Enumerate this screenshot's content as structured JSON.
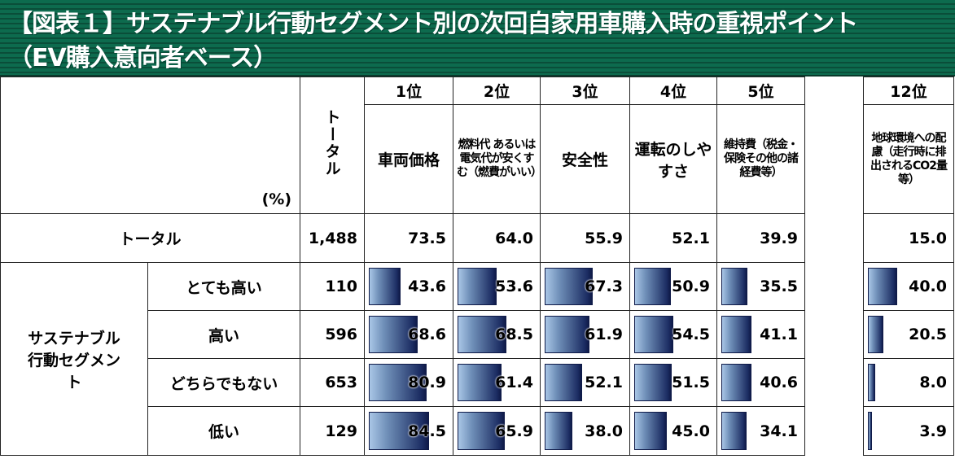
{
  "title": {
    "line1": "【図表１】サステナブル行動セグメント別の次回自家用車購入時の重視ポイント",
    "line2": "（EV購入意向者ベース）"
  },
  "chart_data": {
    "type": "table",
    "unit": "(%)",
    "total_header": "トータル",
    "ranks": [
      "1位",
      "2位",
      "3位",
      "4位",
      "5位",
      "12位"
    ],
    "columns": [
      "車両価格",
      "燃料代 あるいは電気代が安くすむ（燃費がいい）",
      "安全性",
      "運転のしやすさ",
      "維持費（税金・保険その他の諸経費等）",
      "地球環境への配慮（走行時に排出されるCO2量等）"
    ],
    "total_row": {
      "label": "トータル",
      "n": "1,488",
      "values": [
        "73.5",
        "64.0",
        "55.9",
        "52.1",
        "39.9",
        "15.0"
      ]
    },
    "group_label": "サステナブル行動セグメント",
    "rows": [
      {
        "label": "とても高い",
        "n": "110",
        "values": [
          "43.6",
          "53.6",
          "67.3",
          "50.9",
          "35.5",
          "40.0"
        ]
      },
      {
        "label": "高い",
        "n": "596",
        "values": [
          "68.6",
          "68.5",
          "61.9",
          "54.5",
          "41.1",
          "20.5"
        ]
      },
      {
        "label": "どちらでもない",
        "n": "653",
        "values": [
          "80.9",
          "61.4",
          "52.1",
          "51.5",
          "40.6",
          "8.0"
        ]
      },
      {
        "label": "低い",
        "n": "129",
        "values": [
          "84.5",
          "65.9",
          "38.0",
          "45.0",
          "34.1",
          "3.9"
        ]
      }
    ]
  },
  "colors": {
    "title_bg": "#0d6b4e",
    "bar_dark": "#0f1a48",
    "bar_light": "#a9c6e6"
  }
}
